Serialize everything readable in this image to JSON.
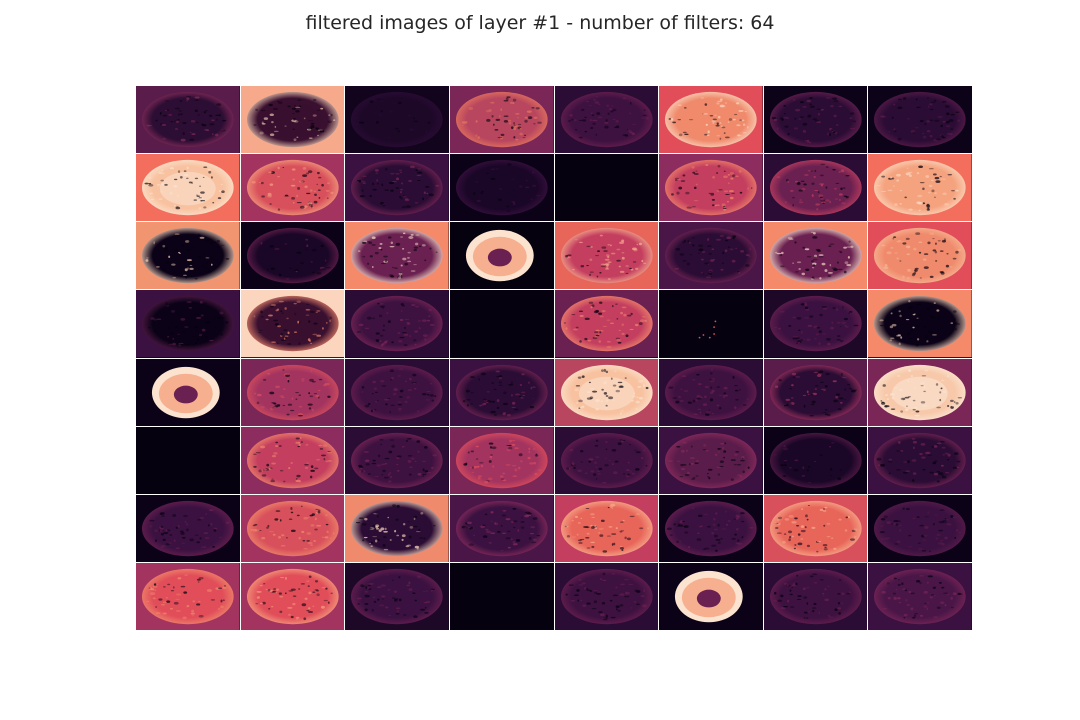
{
  "figure": {
    "title": "filtered images of layer #1 - number of filters: 64",
    "colormap": "rocket",
    "rows": 8,
    "columns": 8
  },
  "filters": [
    {
      "bg": "#5a1c4a",
      "blob": "#2c0d33",
      "edge": "#8a2d5e",
      "style": "texture"
    },
    {
      "bg": "#f7a98b",
      "blob": "#3a1030",
      "edge": "#f4d0b5",
      "style": "ring"
    },
    {
      "bg": "#12041c",
      "blob": "#1d0828",
      "edge": "#2b0c36",
      "style": "dark"
    },
    {
      "bg": "#7a2656",
      "blob": "#b8465f",
      "edge": "#e6765d",
      "style": "texture"
    },
    {
      "bg": "#2a0c34",
      "blob": "#3d1140",
      "edge": "#6a2050",
      "style": "texture"
    },
    {
      "bg": "#e14e5a",
      "blob": "#f08a6c",
      "edge": "#f9d9c1",
      "style": "ring"
    },
    {
      "bg": "#0c0318",
      "blob": "#2a0c34",
      "edge": "#6a2050",
      "style": "texture"
    },
    {
      "bg": "#0c0318",
      "blob": "#2a0c34",
      "edge": "#5a1c4a",
      "style": "texture"
    },
    {
      "bg": "#f36e5c",
      "blob": "#f8c2a0",
      "edge": "#fbe3cf",
      "style": "bright"
    },
    {
      "bg": "#a33460",
      "blob": "#d8505b",
      "edge": "#f3a07f",
      "style": "texture"
    },
    {
      "bg": "#3a1140",
      "blob": "#2a0c34",
      "edge": "#7a2656",
      "style": "texture"
    },
    {
      "bg": "#0b0217",
      "blob": "#1a0626",
      "edge": "#3a1140",
      "style": "dark"
    },
    {
      "bg": "#06010f",
      "blob": "#06010f",
      "edge": "#06010f",
      "style": "flat"
    },
    {
      "bg": "#8d2c5e",
      "blob": "#c43f5f",
      "edge": "#f0866a",
      "style": "texture"
    },
    {
      "bg": "#2a0c34",
      "blob": "#6a2050",
      "edge": "#c43f5f",
      "style": "texture"
    },
    {
      "bg": "#f36e5c",
      "blob": "#f5a27e",
      "edge": "#fbd9c0",
      "style": "ring"
    },
    {
      "bg": "#f0956f",
      "blob": "#0b0217",
      "edge": "#fbd5bd",
      "style": "darkcore"
    },
    {
      "bg": "#0b0217",
      "blob": "#1a0626",
      "edge": "#6a2050",
      "style": "dark"
    },
    {
      "bg": "#f48a6a",
      "blob": "#6a2050",
      "edge": "#fbe0cc",
      "style": "ring"
    },
    {
      "bg": "#06010f",
      "blob": "#f7b08f",
      "edge": "#fbe3cf",
      "style": "cell"
    },
    {
      "bg": "#e8655a",
      "blob": "#c43f5f",
      "edge": "#f7b08f",
      "style": "texture"
    },
    {
      "bg": "#4a1648",
      "blob": "#2a0c34",
      "edge": "#7a2656",
      "style": "texture"
    },
    {
      "bg": "#f48a6a",
      "blob": "#6a2050",
      "edge": "#fbe0cc",
      "style": "ring"
    },
    {
      "bg": "#e14e5a",
      "blob": "#f08a6c",
      "edge": "#f6b796",
      "style": "texture"
    },
    {
      "bg": "#3a1140",
      "blob": "#0b0217",
      "edge": "#5a1c4a",
      "style": "texture"
    },
    {
      "bg": "#fbd5bd",
      "blob": "#3a1030",
      "edge": "#f08a6c",
      "style": "ring"
    },
    {
      "bg": "#2a0c34",
      "blob": "#3d1140",
      "edge": "#7a2656",
      "style": "texture"
    },
    {
      "bg": "#06010f",
      "blob": "#06010f",
      "edge": "#06010f",
      "style": "flat"
    },
    {
      "bg": "#6a2050",
      "blob": "#c43f5f",
      "edge": "#f08a6c",
      "style": "texture"
    },
    {
      "bg": "#06010f",
      "blob": "#06010f",
      "edge": "#e14e5a",
      "style": "specks"
    },
    {
      "bg": "#1d0828",
      "blob": "#3a1140",
      "edge": "#6a2050",
      "style": "texture"
    },
    {
      "bg": "#f48a6a",
      "blob": "#0b0217",
      "edge": "#fbd5bd",
      "style": "darkcore"
    },
    {
      "bg": "#0b0217",
      "blob": "#f7b08f",
      "edge": "#fbe3cf",
      "style": "cell"
    },
    {
      "bg": "#7a2656",
      "blob": "#a33460",
      "edge": "#d8505b",
      "style": "texture"
    },
    {
      "bg": "#2a0c34",
      "blob": "#3d1140",
      "edge": "#6a2050",
      "style": "texture"
    },
    {
      "bg": "#3a1140",
      "blob": "#2a0c34",
      "edge": "#7a2656",
      "style": "texture"
    },
    {
      "bg": "#b8465f",
      "blob": "#f8c2a0",
      "edge": "#fbe3cf",
      "style": "bright"
    },
    {
      "bg": "#2a0c34",
      "blob": "#3d1140",
      "edge": "#6a2050",
      "style": "texture"
    },
    {
      "bg": "#5a1c4a",
      "blob": "#2a0c34",
      "edge": "#a33460",
      "style": "texture"
    },
    {
      "bg": "#7a2656",
      "blob": "#f7c9aa",
      "edge": "#fbe6d4",
      "style": "bright"
    },
    {
      "bg": "#06010f",
      "blob": "#06010f",
      "edge": "#06010f",
      "style": "flat"
    },
    {
      "bg": "#8d2c5e",
      "blob": "#c43f5f",
      "edge": "#f08a6c",
      "style": "texture"
    },
    {
      "bg": "#2a0c34",
      "blob": "#3d1140",
      "edge": "#7a2656",
      "style": "texture"
    },
    {
      "bg": "#7a2656",
      "blob": "#a33460",
      "edge": "#e14e5a",
      "style": "texture"
    },
    {
      "bg": "#2a0c34",
      "blob": "#3d1140",
      "edge": "#6a2050",
      "style": "texture"
    },
    {
      "bg": "#3a1140",
      "blob": "#5a1c4a",
      "edge": "#8d2c5e",
      "style": "texture"
    },
    {
      "bg": "#0b0217",
      "blob": "#1a0626",
      "edge": "#5a1c4a",
      "style": "dark"
    },
    {
      "bg": "#3a1140",
      "blob": "#2a0c34",
      "edge": "#7a2656",
      "style": "texture"
    },
    {
      "bg": "#0b0217",
      "blob": "#3a1140",
      "edge": "#6a2050",
      "style": "texture"
    },
    {
      "bg": "#a33460",
      "blob": "#d8505b",
      "edge": "#f08a6c",
      "style": "texture"
    },
    {
      "bg": "#f08a6c",
      "blob": "#2a0c34",
      "edge": "#fbd5bd",
      "style": "darkcore"
    },
    {
      "bg": "#4a1648",
      "blob": "#3a1140",
      "edge": "#8d2c5e",
      "style": "texture"
    },
    {
      "bg": "#c43f5f",
      "blob": "#e8655a",
      "edge": "#f7b08f",
      "style": "texture"
    },
    {
      "bg": "#0b0217",
      "blob": "#3a1140",
      "edge": "#6a2050",
      "style": "texture"
    },
    {
      "bg": "#d8505b",
      "blob": "#e8655a",
      "edge": "#f7b08f",
      "style": "texture"
    },
    {
      "bg": "#0b0217",
      "blob": "#3a1140",
      "edge": "#5a1c4a",
      "style": "texture"
    },
    {
      "bg": "#a33460",
      "blob": "#e14e5a",
      "edge": "#f08a6c",
      "style": "texture"
    },
    {
      "bg": "#a33460",
      "blob": "#e14e5a",
      "edge": "#f5a27e",
      "style": "texture"
    },
    {
      "bg": "#1d0828",
      "blob": "#3a1140",
      "edge": "#6a2050",
      "style": "texture"
    },
    {
      "bg": "#06010f",
      "blob": "#06010f",
      "edge": "#06010f",
      "style": "flat"
    },
    {
      "bg": "#2a0c34",
      "blob": "#3d1140",
      "edge": "#6a2050",
      "style": "texture"
    },
    {
      "bg": "#0b0217",
      "blob": "#f7b08f",
      "edge": "#fbe3cf",
      "style": "cell"
    },
    {
      "bg": "#2a0c34",
      "blob": "#3d1140",
      "edge": "#6a2050",
      "style": "texture"
    },
    {
      "bg": "#3a1140",
      "blob": "#4a1648",
      "edge": "#7a2656",
      "style": "texture"
    }
  ]
}
